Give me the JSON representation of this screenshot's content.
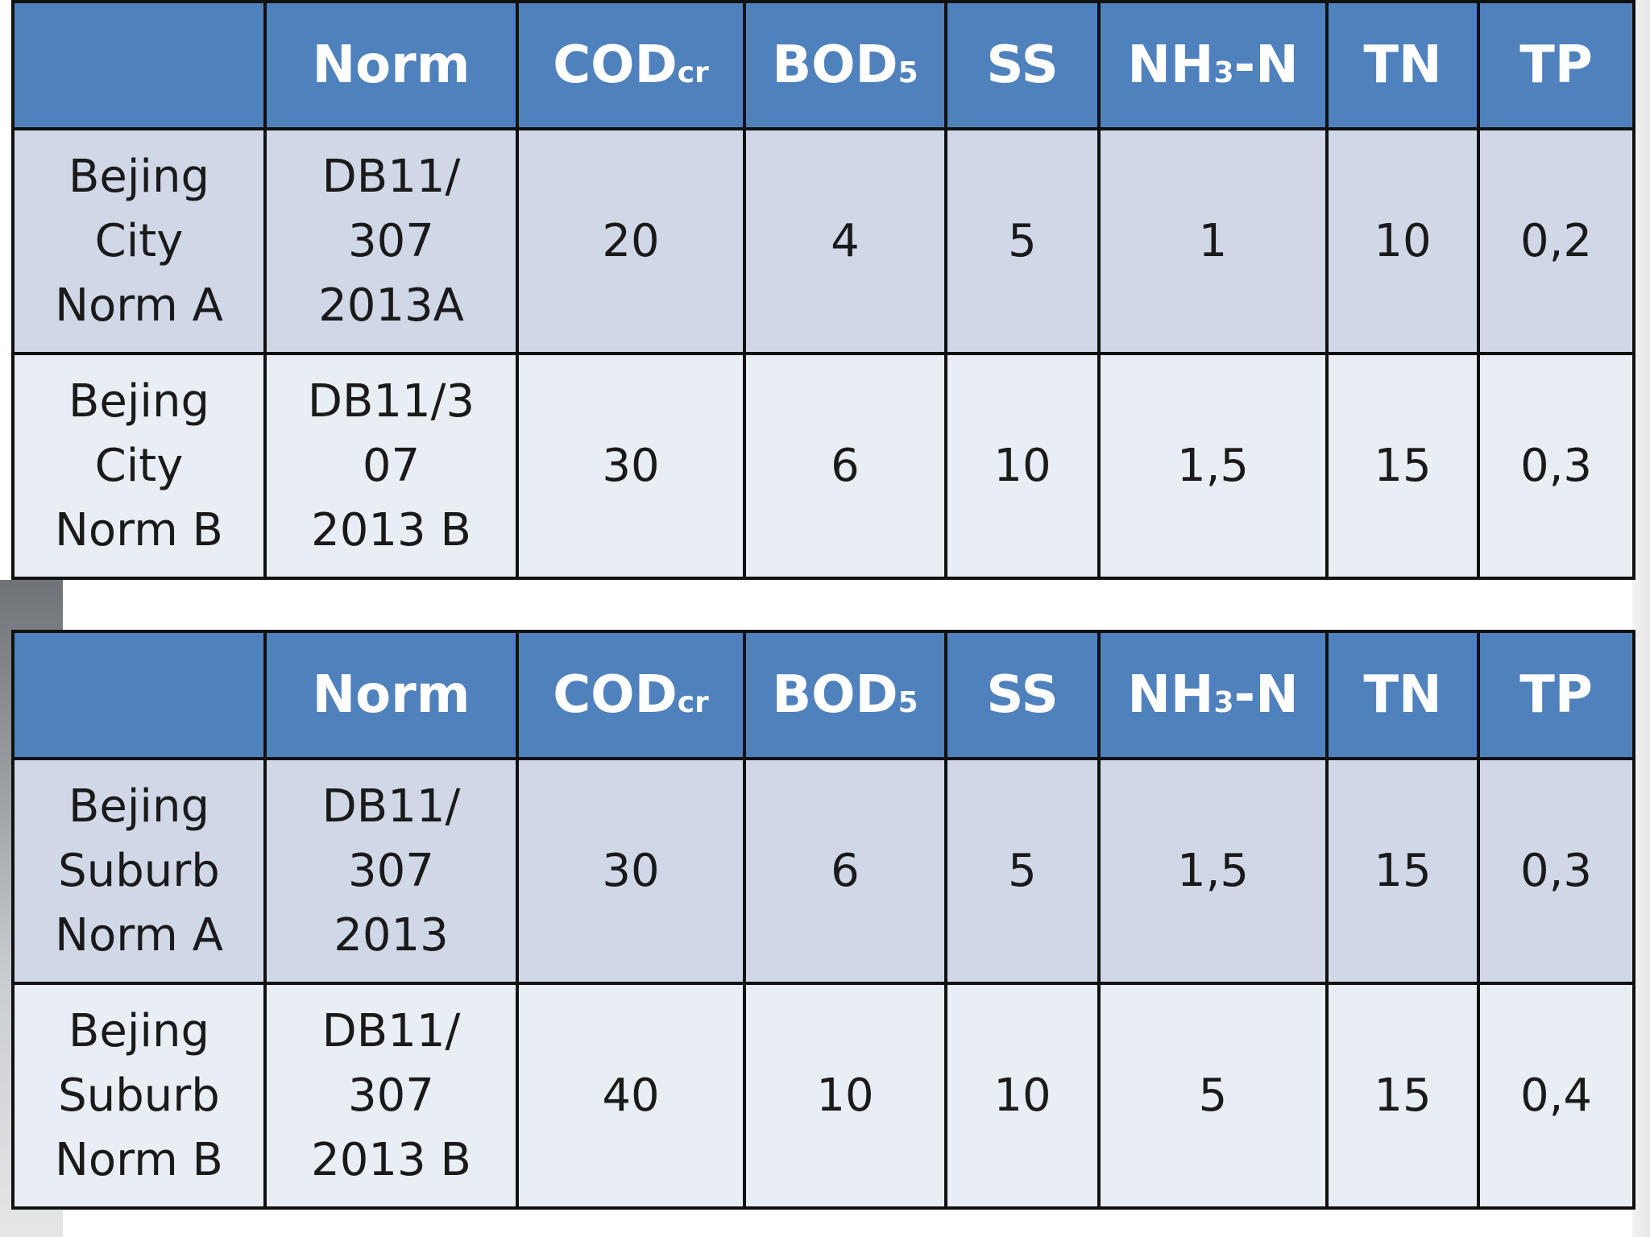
{
  "header": {
    "blank": "",
    "norm": "Norm",
    "cod": {
      "base": "COD",
      "sub": "cr"
    },
    "bod": {
      "base": "BOD",
      "sub": "5"
    },
    "ss": "SS",
    "nh3n": {
      "pre": "NH",
      "sub": "3",
      "post": "-N"
    },
    "tn": "TN",
    "tp": "TP"
  },
  "tables": [
    {
      "rows": [
        {
          "name": "Bejing\nCity\nNorm A",
          "norm": "DB11/\n307\n2013A",
          "cod": "20",
          "bod": "4",
          "ss": "5",
          "nh3n": "1",
          "tn": "10",
          "tp": "0,2"
        },
        {
          "name": "Bejing\nCity\nNorm B",
          "norm": "DB11/3\n07\n2013 B",
          "cod": "30",
          "bod": "6",
          "ss": "10",
          "nh3n": "1,5",
          "tn": "15",
          "tp": "0,3"
        }
      ]
    },
    {
      "rows": [
        {
          "name": "Bejing\nSuburb\nNorm A",
          "norm": "DB11/\n307\n2013",
          "cod": "30",
          "bod": "6",
          "ss": "5",
          "nh3n": "1,5",
          "tn": "15",
          "tp": "0,3"
        },
        {
          "name": "Bejing\nSuburb\nNorm B",
          "norm": "DB11/\n307\n2013 B",
          "cod": "40",
          "bod": "10",
          "ss": "10",
          "nh3n": "5",
          "tn": "15",
          "tp": "0,4"
        }
      ]
    }
  ],
  "colors": {
    "header_bg": "#4f81bd",
    "row_odd_bg": "#d0d8e8",
    "row_even_bg": "#e9edf4",
    "border": "#111111"
  }
}
